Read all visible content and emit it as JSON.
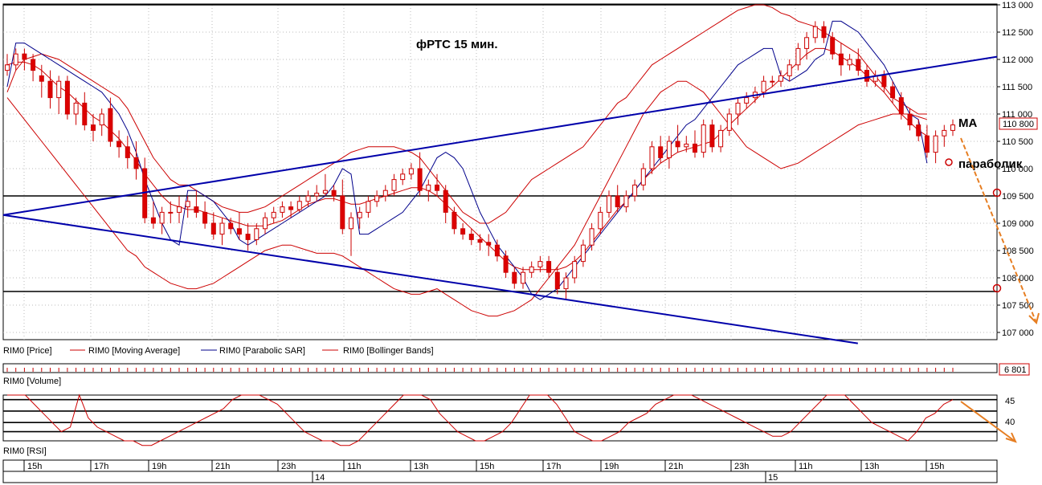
{
  "chart_data": {
    "type": "candlestick",
    "title": "фРТС  15 мин.",
    "y_axis": {
      "min": 107000,
      "max": 113000,
      "ticks": [
        "113 000",
        "112 500",
        "112 000",
        "111 500",
        "111 000",
        "110 500",
        "110 000",
        "109 500",
        "109 000",
        "108 500",
        "108 000",
        "107 500",
        "107 000"
      ]
    },
    "last_price_label": "110 800",
    "annotations": {
      "ma": "MA",
      "parabolic": "параболик"
    },
    "horizontal_levels": [
      113000,
      109500,
      107750
    ],
    "trendlines": [
      {
        "x0": 0,
        "y0": 109150,
        "x1": 1,
        "y1": 112050
      },
      {
        "x0": 0,
        "y0": 109150,
        "x1": 0.86,
        "y1": 106800
      }
    ],
    "candles": [
      [
        111800,
        112100,
        111700,
        111900
      ],
      [
        111900,
        112200,
        111800,
        112100
      ],
      [
        112100,
        112200,
        111800,
        112000
      ],
      [
        112000,
        112100,
        111600,
        111800
      ],
      [
        111700,
        111900,
        111300,
        111600
      ],
      [
        111600,
        111800,
        111100,
        111300
      ],
      [
        111300,
        111700,
        111000,
        111600
      ],
      [
        111600,
        111700,
        110900,
        111000
      ],
      [
        111000,
        111300,
        110800,
        111200
      ],
      [
        111200,
        111400,
        110700,
        110800
      ],
      [
        110800,
        111000,
        110500,
        110700
      ],
      [
        110800,
        111100,
        110600,
        111000
      ],
      [
        111100,
        111300,
        110400,
        110500
      ],
      [
        110500,
        110700,
        110200,
        110400
      ],
      [
        110400,
        110600,
        110000,
        110200
      ],
      [
        110200,
        110500,
        109800,
        110000
      ],
      [
        110000,
        110200,
        109000,
        109100
      ],
      [
        109100,
        109400,
        108900,
        109000
      ],
      [
        109000,
        109300,
        108800,
        109200
      ],
      [
        109200,
        109400,
        109000,
        109200
      ],
      [
        109200,
        109500,
        109000,
        109300
      ],
      [
        109300,
        109500,
        109100,
        109400
      ],
      [
        109300,
        109600,
        109100,
        109200
      ],
      [
        109200,
        109400,
        108900,
        109000
      ],
      [
        109000,
        109200,
        108700,
        108800
      ],
      [
        108800,
        109100,
        108600,
        109000
      ],
      [
        109000,
        109100,
        108800,
        108900
      ],
      [
        108900,
        109200,
        108700,
        108800
      ],
      [
        108800,
        109000,
        108500,
        108700
      ],
      [
        108700,
        109000,
        108600,
        108900
      ],
      [
        108900,
        109200,
        108800,
        109100
      ],
      [
        109100,
        109300,
        109000,
        109200
      ],
      [
        109200,
        109400,
        109100,
        109300
      ],
      [
        109300,
        109400,
        109100,
        109250
      ],
      [
        109250,
        109500,
        109200,
        109400
      ],
      [
        109400,
        109600,
        109300,
        109500
      ],
      [
        109500,
        109700,
        109400,
        109550
      ],
      [
        109550,
        109900,
        109500,
        109600
      ],
      [
        109600,
        109700,
        109400,
        109500
      ],
      [
        109500,
        109800,
        108800,
        108900
      ],
      [
        108900,
        109200,
        108400,
        109100
      ],
      [
        109100,
        109300,
        108900,
        109200
      ],
      [
        109200,
        109500,
        109100,
        109400
      ],
      [
        109400,
        109600,
        109300,
        109500
      ],
      [
        109500,
        109700,
        109400,
        109600
      ],
      [
        109600,
        109900,
        109500,
        109800
      ],
      [
        109800,
        110000,
        109700,
        109900
      ],
      [
        109900,
        110100,
        109800,
        110000
      ],
      [
        110000,
        110300,
        109500,
        109600
      ],
      [
        109600,
        109800,
        109400,
        109700
      ],
      [
        109700,
        109900,
        109500,
        109600
      ],
      [
        109600,
        109700,
        109000,
        109200
      ],
      [
        109200,
        109300,
        108800,
        108900
      ],
      [
        108900,
        109000,
        108700,
        108800
      ],
      [
        108800,
        108900,
        108600,
        108700
      ],
      [
        108700,
        108800,
        108500,
        108650
      ],
      [
        108650,
        108800,
        108400,
        108600
      ],
      [
        108600,
        108700,
        108300,
        108400
      ],
      [
        108400,
        108500,
        108000,
        108100
      ],
      [
        108100,
        108200,
        107800,
        107900
      ],
      [
        107900,
        108200,
        107800,
        108100
      ],
      [
        108100,
        108300,
        108000,
        108200
      ],
      [
        108200,
        108400,
        108100,
        108300
      ],
      [
        108300,
        108400,
        108000,
        108100
      ],
      [
        108100,
        108200,
        107700,
        107800
      ],
      [
        107800,
        108100,
        107600,
        108000
      ],
      [
        108000,
        108400,
        107900,
        108300
      ],
      [
        108300,
        108700,
        108200,
        108600
      ],
      [
        108600,
        109000,
        108500,
        108900
      ],
      [
        108900,
        109300,
        108800,
        109200
      ],
      [
        109200,
        109600,
        109100,
        109500
      ],
      [
        109500,
        109700,
        109200,
        109300
      ],
      [
        109300,
        109600,
        109200,
        109500
      ],
      [
        109500,
        109800,
        109400,
        109700
      ],
      [
        109700,
        110100,
        109600,
        110000
      ],
      [
        110000,
        110500,
        109900,
        110400
      ],
      [
        110400,
        110600,
        110100,
        110200
      ],
      [
        110200,
        110600,
        110000,
        110500
      ],
      [
        110500,
        110800,
        110300,
        110400
      ],
      [
        110400,
        110600,
        110300,
        110450
      ],
      [
        110450,
        110700,
        110200,
        110300
      ],
      [
        110300,
        110900,
        110200,
        110800
      ],
      [
        110800,
        110900,
        110300,
        110400
      ],
      [
        110400,
        110800,
        110300,
        110700
      ],
      [
        110700,
        111100,
        110600,
        111000
      ],
      [
        111000,
        111300,
        110800,
        111200
      ],
      [
        111200,
        111400,
        111100,
        111300
      ],
      [
        111300,
        111500,
        111200,
        111400
      ],
      [
        111400,
        111700,
        111300,
        111600
      ],
      [
        111600,
        111700,
        111500,
        111600
      ],
      [
        111600,
        111800,
        111500,
        111700
      ],
      [
        111700,
        112000,
        111600,
        111900
      ],
      [
        111900,
        112300,
        111800,
        112200
      ],
      [
        112200,
        112500,
        112000,
        112400
      ],
      [
        112400,
        112700,
        112300,
        112600
      ],
      [
        112600,
        112700,
        112300,
        112400
      ],
      [
        112400,
        112500,
        112000,
        112100
      ],
      [
        112100,
        112300,
        111700,
        111900
      ],
      [
        111900,
        112100,
        111800,
        112000
      ],
      [
        112000,
        112200,
        111700,
        111800
      ],
      [
        111800,
        111900,
        111500,
        111600
      ],
      [
        111600,
        111800,
        111500,
        111700
      ],
      [
        111700,
        111800,
        111400,
        111500
      ],
      [
        111500,
        111600,
        111200,
        111300
      ],
      [
        111300,
        111400,
        110900,
        111000
      ],
      [
        111000,
        111100,
        110700,
        110800
      ],
      [
        110800,
        110900,
        110500,
        110600
      ],
      [
        110600,
        110800,
        110200,
        110300
      ],
      [
        110300,
        110700,
        110100,
        110600
      ],
      [
        110600,
        110800,
        110400,
        110700
      ],
      [
        110700,
        110900,
        110600,
        110800
      ]
    ],
    "moving_average": [
      111900,
      111950,
      111950,
      111900,
      111800,
      111650,
      111500,
      111400,
      111250,
      111100,
      110950,
      110850,
      110700,
      110550,
      110350,
      110150,
      109900,
      109700,
      109500,
      109350,
      109300,
      109250,
      109250,
      109200,
      109150,
      109100,
      109050,
      109000,
      108950,
      108950,
      108950,
      109000,
      109050,
      109150,
      109250,
      109350,
      109400,
      109450,
      109450,
      109400,
      109350,
      109350,
      109400,
      109450,
      109500,
      109550,
      109600,
      109650,
      109650,
      109600,
      109500,
      109350,
      109200,
      109050,
      108900,
      108750,
      108600,
      108450,
      108300,
      108200,
      108150,
      108150,
      108150,
      108150,
      108150,
      108200,
      108300,
      108450,
      108650,
      108850,
      109050,
      109250,
      109400,
      109600,
      109800,
      109950,
      110100,
      110200,
      110300,
      110350,
      110400,
      110450,
      110500,
      110650,
      110800,
      110950,
      111100,
      111250,
      111400,
      111500,
      111650,
      111800,
      111950,
      112100,
      112200,
      112200,
      112150,
      112050,
      111950,
      111850,
      111700,
      111550,
      111400,
      111200,
      111000,
      110850,
      110700,
      110600
    ],
    "parabolic_sar": [
      111500,
      112300,
      112300,
      112200,
      112100,
      112000,
      111900,
      111800,
      111700,
      111600,
      111500,
      111400,
      111200,
      111000,
      110700,
      110300,
      109800,
      109400,
      109000,
      108700,
      108600,
      109600,
      109600,
      109500,
      109400,
      109200,
      109000,
      108700,
      108600,
      108700,
      108800,
      108900,
      109000,
      109100,
      109200,
      109300,
      109400,
      109500,
      109700,
      110000,
      109900,
      108800,
      108800,
      108900,
      109000,
      109100,
      109200,
      109400,
      109600,
      109900,
      110200,
      110300,
      110200,
      110000,
      109600,
      109200,
      108900,
      108600,
      108400,
      108200,
      108000,
      107700,
      107600,
      107700,
      107800,
      108000,
      108200,
      108400,
      108600,
      108800,
      109000,
      109200,
      109400,
      109600,
      109800,
      110000,
      110200,
      110400,
      110600,
      110800,
      110900,
      111100,
      111300,
      111500,
      111700,
      111900,
      112000,
      112100,
      112200,
      112200,
      111700,
      111600,
      111700,
      111800,
      112000,
      112100,
      112700,
      112700,
      112600,
      112500,
      112300,
      112100,
      111900,
      111600,
      111300,
      111000,
      110900,
      110100
    ],
    "bollinger_upper": [
      111400,
      111800,
      112000,
      112050,
      112100,
      112050,
      112000,
      111900,
      111800,
      111700,
      111600,
      111500,
      111400,
      111300,
      111100,
      110800,
      110500,
      110200,
      110000,
      109800,
      109700,
      109700,
      109600,
      109500,
      109400,
      109300,
      109250,
      109200,
      109200,
      109250,
      109300,
      109400,
      109500,
      109600,
      109700,
      109800,
      109900,
      110000,
      110100,
      110200,
      110300,
      110350,
      110400,
      110400,
      110400,
      110400,
      110350,
      110300,
      110200,
      110000,
      109800,
      109600,
      109400,
      109200,
      109100,
      109000,
      109000,
      109100,
      109200,
      109400,
      109600,
      109800,
      109900,
      110000,
      110100,
      110200,
      110300,
      110400,
      110600,
      110800,
      111000,
      111200,
      111300,
      111500,
      111700,
      111900,
      112000,
      112100,
      112200,
      112300,
      112400,
      112500,
      112600,
      112700,
      112800,
      112900,
      112950,
      113000,
      113000,
      112950,
      112850,
      112800,
      112700,
      112650,
      112600,
      112500,
      112400,
      112300,
      112200,
      112100,
      111900,
      111700,
      111500,
      111300,
      111200,
      111100,
      111000,
      111000
    ],
    "bollinger_lower": [
      111300,
      111100,
      110900,
      110700,
      110500,
      110300,
      110100,
      109900,
      109700,
      109500,
      109300,
      109100,
      108900,
      108700,
      108500,
      108400,
      108200,
      108100,
      108000,
      107900,
      107850,
      107800,
      107800,
      107850,
      107900,
      108000,
      108100,
      108200,
      108300,
      108400,
      108500,
      108550,
      108600,
      108600,
      108550,
      108500,
      108450,
      108450,
      108450,
      108400,
      108300,
      108200,
      108100,
      108000,
      107900,
      107800,
      107750,
      107700,
      107700,
      107750,
      107800,
      107700,
      107600,
      107500,
      107400,
      107350,
      107300,
      107300,
      107350,
      107400,
      107500,
      107600,
      107800,
      108000,
      108200,
      108400,
      108600,
      108900,
      109200,
      109500,
      109800,
      110100,
      110400,
      110700,
      111000,
      111200,
      111400,
      111500,
      111600,
      111600,
      111500,
      111400,
      111200,
      111000,
      110800,
      110600,
      110400,
      110300,
      110200,
      110100,
      110000,
      110050,
      110100,
      110200,
      110300,
      110400,
      110500,
      110600,
      110700,
      110800,
      110850,
      110900,
      110950,
      111000,
      111000,
      111000,
      110950,
      110900
    ],
    "legend": [
      {
        "label": "RIM0 [Price]",
        "color": "#cc0000"
      },
      {
        "label": "RIM0 [Moving Average]",
        "color": "#cc0000"
      },
      {
        "label": "RIM0 [Parabolic SAR]",
        "color": "#00008b"
      },
      {
        "label": "RIM0 [Bollinger Bands]",
        "color": "#cc0000"
      }
    ],
    "volume": {
      "label": "RIM0 [Volume]",
      "last_value": "6 801"
    },
    "rsi": {
      "label": "RIM0 [RSI]",
      "ticks": [
        "45",
        "40"
      ],
      "values": [
        46,
        46,
        46,
        44,
        42,
        40,
        38,
        39,
        46,
        41,
        39,
        38,
        37,
        36,
        36,
        35,
        35,
        36,
        37,
        38,
        39,
        40,
        41,
        42,
        43,
        45,
        46,
        46,
        46,
        45,
        44,
        42,
        40,
        38,
        37,
        36,
        36,
        35,
        35,
        36,
        38,
        40,
        42,
        44,
        46,
        46,
        46,
        45,
        42,
        40,
        38,
        37,
        36,
        36,
        37,
        38,
        40,
        43,
        46,
        46,
        46,
        44,
        41,
        38,
        37,
        36,
        36,
        37,
        38,
        40,
        41,
        42,
        44,
        45,
        46,
        46,
        46,
        45,
        44,
        43,
        42,
        41,
        40,
        39,
        38,
        37,
        37,
        38,
        40,
        42,
        44,
        46,
        46,
        46,
        44,
        42,
        40,
        39,
        38,
        37,
        36,
        38,
        41,
        42,
        44,
        45
      ]
    },
    "time_labels": [
      "15h",
      "17h",
      "19h",
      "21h",
      "23h",
      "11h",
      "13h",
      "15h",
      "17h",
      "19h",
      "21h",
      "23h",
      "11h",
      "13h",
      "15h"
    ],
    "date_labels": [
      "14",
      "15"
    ]
  }
}
